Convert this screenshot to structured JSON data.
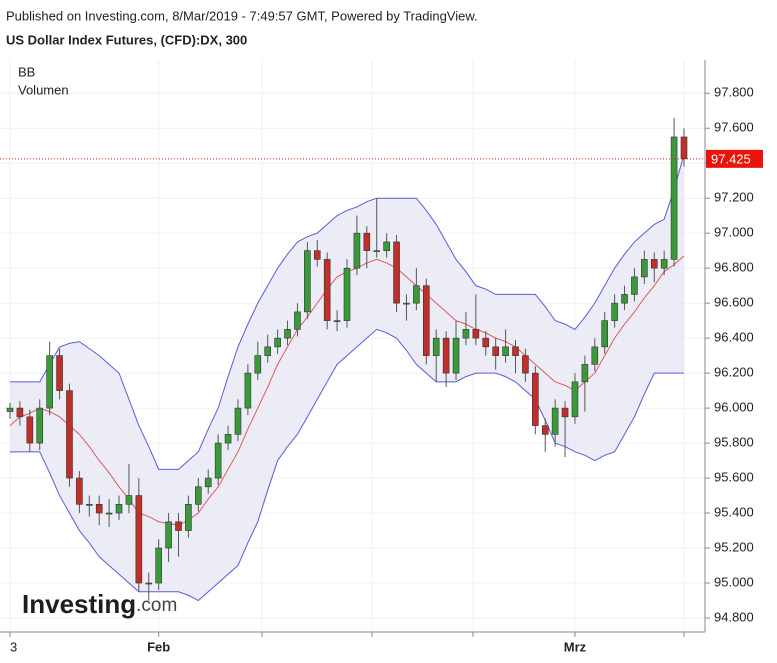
{
  "chart_data": {
    "type": "candlestick",
    "subtitle": "Published on Investing.com, 8/Mar/2019 - 7:49:57 GMT, Powered by TradingView.",
    "title": "US Dollar Index Futures, (CFD):DX, 300",
    "legend": [
      "BB",
      "Volumen"
    ],
    "watermark": [
      "Investing",
      ".com"
    ],
    "categories": [
      "3",
      null,
      null,
      null,
      null,
      null,
      null,
      null,
      null,
      null,
      null,
      null,
      null,
      null,
      null,
      "Feb",
      null,
      null,
      null,
      null,
      null,
      null,
      null,
      null,
      null,
      null,
      null,
      null,
      null,
      null,
      null,
      null,
      null,
      null,
      null,
      null,
      null,
      null,
      null,
      null,
      null,
      null,
      null,
      null,
      null,
      null,
      null,
      null,
      null,
      null,
      null,
      null,
      null,
      null,
      null,
      null,
      null,
      "Mrz",
      null,
      null,
      null,
      null,
      null,
      null,
      null,
      null,
      null,
      null,
      null
    ],
    "ohlc": {
      "open": [
        95.98,
        96.0,
        95.95,
        95.8,
        96.0,
        96.3,
        96.1,
        95.6,
        95.45,
        95.45,
        95.4,
        95.4,
        95.45,
        95.5,
        95.0,
        95.0,
        95.2,
        95.35,
        95.3,
        95.45,
        95.55,
        95.6,
        95.8,
        95.85,
        96.0,
        96.2,
        96.3,
        96.35,
        96.4,
        96.45,
        96.55,
        96.9,
        96.85,
        96.5,
        96.5,
        96.8,
        97.0,
        96.9,
        96.9,
        96.95,
        96.6,
        96.6,
        96.7,
        96.3,
        96.4,
        96.2,
        96.4,
        96.45,
        96.4,
        96.35,
        96.3,
        96.35,
        96.3,
        96.2,
        95.9,
        95.85,
        96.0,
        95.95,
        96.15,
        96.25,
        96.35,
        96.5,
        96.6,
        96.65,
        96.75,
        96.85,
        96.8,
        96.85,
        97.55
      ],
      "high": [
        96.03,
        96.04,
        95.99,
        96.05,
        96.38,
        96.34,
        96.14,
        95.64,
        95.5,
        95.5,
        95.48,
        95.5,
        95.68,
        95.6,
        95.06,
        95.25,
        95.4,
        95.4,
        95.5,
        95.6,
        95.65,
        95.85,
        95.9,
        96.05,
        96.25,
        96.38,
        96.42,
        96.45,
        96.5,
        96.6,
        96.95,
        96.96,
        96.89,
        96.56,
        96.85,
        97.1,
        97.04,
        97.2,
        97.0,
        96.99,
        96.65,
        96.8,
        96.74,
        96.45,
        96.44,
        96.5,
        96.55,
        96.65,
        96.44,
        96.4,
        96.45,
        96.39,
        96.34,
        96.24,
        95.94,
        96.05,
        96.04,
        96.2,
        96.3,
        96.4,
        96.55,
        96.65,
        96.7,
        96.8,
        96.9,
        96.89,
        96.9,
        97.66,
        97.6
      ],
      "low": [
        95.94,
        95.9,
        95.75,
        95.76,
        95.96,
        96.05,
        95.55,
        95.4,
        95.38,
        95.33,
        95.32,
        95.36,
        95.4,
        94.95,
        94.9,
        94.96,
        95.12,
        95.15,
        95.26,
        95.41,
        95.51,
        95.56,
        95.76,
        95.81,
        95.96,
        96.16,
        96.26,
        96.31,
        96.36,
        96.41,
        96.51,
        96.81,
        96.45,
        96.44,
        96.46,
        96.76,
        96.8,
        96.86,
        96.86,
        96.55,
        96.5,
        96.56,
        96.25,
        96.15,
        96.12,
        96.16,
        96.36,
        96.36,
        96.3,
        96.22,
        96.26,
        96.2,
        96.15,
        95.85,
        95.75,
        95.78,
        95.72,
        95.91,
        95.98,
        96.21,
        96.31,
        96.46,
        96.56,
        96.61,
        96.71,
        96.72,
        96.76,
        96.81,
        97.38
      ],
      "close": [
        96.0,
        95.95,
        95.8,
        96.0,
        96.3,
        96.1,
        95.6,
        95.45,
        95.45,
        95.4,
        95.4,
        95.45,
        95.5,
        95.0,
        95.0,
        95.2,
        95.35,
        95.3,
        95.45,
        95.55,
        95.6,
        95.8,
        95.85,
        96.0,
        96.2,
        96.3,
        96.35,
        96.4,
        96.45,
        96.55,
        96.9,
        96.85,
        96.5,
        96.5,
        96.8,
        97.0,
        96.9,
        96.9,
        96.95,
        96.6,
        96.6,
        96.7,
        96.3,
        96.4,
        96.2,
        96.4,
        96.45,
        96.4,
        96.35,
        96.3,
        96.35,
        96.3,
        96.2,
        95.9,
        95.85,
        96.0,
        95.95,
        96.15,
        96.25,
        96.35,
        96.5,
        96.6,
        96.65,
        96.75,
        96.85,
        96.8,
        96.85,
        97.55,
        97.425
      ]
    },
    "colors": {
      "up": "#3a9a3a",
      "down": "#c0302a"
    },
    "bands": {
      "color": "#5a5ad8",
      "middle_color": "#e05a5a",
      "fill": "#e6e6f4",
      "upper": [
        96.15,
        96.15,
        96.15,
        96.15,
        96.25,
        96.35,
        96.37,
        96.38,
        96.34,
        96.3,
        96.25,
        96.2,
        96.05,
        95.9,
        95.78,
        95.65,
        95.65,
        95.65,
        95.7,
        95.75,
        95.88,
        96.0,
        96.18,
        96.35,
        96.48,
        96.6,
        96.7,
        96.8,
        96.88,
        96.95,
        96.98,
        97.0,
        97.05,
        97.1,
        97.13,
        97.15,
        97.18,
        97.2,
        97.2,
        97.2,
        97.2,
        97.2,
        97.13,
        97.05,
        96.95,
        96.85,
        96.78,
        96.7,
        96.68,
        96.65,
        96.65,
        96.65,
        96.65,
        96.65,
        96.58,
        96.5,
        96.48,
        96.45,
        96.52,
        96.6,
        96.7,
        96.8,
        96.88,
        96.95,
        97.0,
        97.05,
        97.08,
        97.25,
        97.45
      ],
      "middle": [
        95.9,
        95.95,
        95.97,
        96.0,
        95.98,
        95.95,
        95.9,
        95.85,
        95.78,
        95.7,
        95.63,
        95.55,
        95.48,
        95.4,
        95.38,
        95.35,
        95.34,
        95.33,
        95.36,
        95.4,
        95.48,
        95.55,
        95.65,
        95.75,
        95.88,
        96.0,
        96.12,
        96.25,
        96.35,
        96.45,
        96.52,
        96.6,
        96.68,
        96.75,
        96.78,
        96.8,
        96.83,
        96.85,
        96.83,
        96.8,
        96.75,
        96.7,
        96.65,
        96.6,
        96.55,
        96.5,
        96.48,
        96.45,
        96.43,
        96.4,
        96.38,
        96.35,
        96.3,
        96.25,
        96.2,
        96.15,
        96.13,
        96.1,
        96.15,
        96.2,
        96.3,
        96.4,
        96.48,
        96.55,
        96.63,
        96.7,
        96.78,
        96.82,
        96.87
      ],
      "lower": [
        95.75,
        95.75,
        95.75,
        95.75,
        95.63,
        95.5,
        95.4,
        95.3,
        95.23,
        95.15,
        95.1,
        95.05,
        95.0,
        94.95,
        94.95,
        94.95,
        94.95,
        94.95,
        94.93,
        94.9,
        94.95,
        95.0,
        95.05,
        95.1,
        95.23,
        95.35,
        95.53,
        95.7,
        95.78,
        95.85,
        95.95,
        96.05,
        96.15,
        96.25,
        96.3,
        96.35,
        96.4,
        96.45,
        96.43,
        96.4,
        96.33,
        96.25,
        96.2,
        96.15,
        96.15,
        96.15,
        96.18,
        96.2,
        96.2,
        96.2,
        96.18,
        96.15,
        96.1,
        96.05,
        95.93,
        95.8,
        95.78,
        95.75,
        95.73,
        95.7,
        95.73,
        95.75,
        95.85,
        95.95,
        96.08,
        96.2,
        96.2,
        96.2,
        96.2
      ]
    },
    "last_price": 97.425,
    "last_price_color": "#e8140c",
    "ylim": [
      94.72,
      97.99
    ],
    "yticks": [
      {
        "value": 94.8,
        "label": "94.800"
      },
      {
        "value": 95.0,
        "label": "95.000"
      },
      {
        "value": 95.2,
        "label": "95.200"
      },
      {
        "value": 95.4,
        "label": "95.400"
      },
      {
        "value": 95.6,
        "label": "95.600"
      },
      {
        "value": 95.8,
        "label": "95.800"
      },
      {
        "value": 96.0,
        "label": "96.000"
      },
      {
        "value": 96.2,
        "label": "96.200"
      },
      {
        "value": 96.4,
        "label": "96.400"
      },
      {
        "value": 96.6,
        "label": "96.600"
      },
      {
        "value": 96.8,
        "label": "96.800"
      },
      {
        "value": 97.0,
        "label": "97.000"
      },
      {
        "value": 97.2,
        "label": "97.200"
      },
      {
        "value": 97.4,
        "label": "97.400"
      },
      {
        "value": 97.6,
        "label": "97.600"
      },
      {
        "value": 97.8,
        "label": "97.800"
      }
    ],
    "grid": true
  }
}
